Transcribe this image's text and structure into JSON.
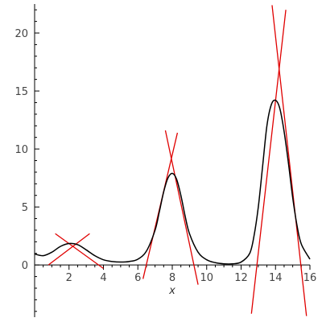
{
  "chart_data": {
    "type": "line",
    "title": "",
    "xlabel": "x",
    "ylabel": "",
    "xlim": [
      0,
      16
    ],
    "ylim": [
      -4.5,
      22.5
    ],
    "x_ticks": [
      2,
      4,
      6,
      8,
      10,
      12,
      14,
      16
    ],
    "y_ticks": [
      0,
      5,
      10,
      15,
      20
    ],
    "grid": false,
    "curve_color": "#000000",
    "tangent_color": "#e00000",
    "curve": {
      "x": [
        0,
        0.5,
        1,
        1.5,
        2,
        2.5,
        3,
        3.5,
        4,
        4.5,
        5,
        5.5,
        6,
        6.5,
        7,
        7.25,
        7.5,
        7.75,
        8,
        8.25,
        8.5,
        8.75,
        9,
        9.5,
        10,
        10.5,
        11,
        11.5,
        12,
        12.5,
        12.75,
        13,
        13.25,
        13.5,
        13.75,
        14,
        14.25,
        14.5,
        14.75,
        15,
        15.25,
        15.5,
        16
      ],
      "y": [
        0.95,
        0.8,
        1.1,
        1.6,
        1.85,
        1.75,
        1.3,
        0.8,
        0.45,
        0.3,
        0.25,
        0.3,
        0.5,
        1.2,
        3.0,
        4.6,
        6.3,
        7.5,
        7.9,
        7.4,
        6.0,
        4.2,
        2.7,
        1.1,
        0.45,
        0.2,
        0.1,
        0.1,
        0.25,
        1.0,
        2.5,
        5.0,
        8.5,
        12.0,
        13.8,
        14.2,
        13.5,
        11.5,
        8.8,
        5.8,
        3.4,
        1.8,
        0.5
      ]
    },
    "tangent_lines": [
      {
        "x": [
          0.8,
          3.2
        ],
        "y": [
          0.0,
          2.7
        ]
      },
      {
        "x": [
          1.2,
          4.0
        ],
        "y": [
          2.7,
          -0.3
        ]
      },
      {
        "x": [
          6.3,
          8.3
        ],
        "y": [
          -1.2,
          11.4
        ]
      },
      {
        "x": [
          7.6,
          9.5
        ],
        "y": [
          11.6,
          -1.7
        ]
      },
      {
        "x": [
          12.6,
          14.6
        ],
        "y": [
          -4.2,
          22.0
        ]
      },
      {
        "x": [
          13.8,
          15.8
        ],
        "y": [
          22.4,
          -4.4
        ]
      }
    ]
  }
}
